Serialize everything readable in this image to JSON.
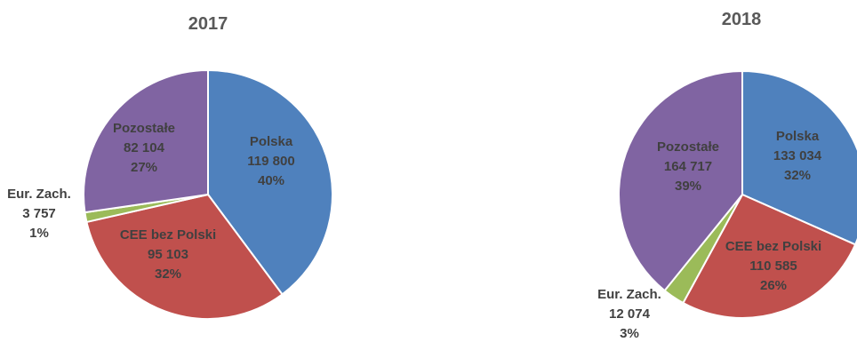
{
  "chart_data": [
    {
      "type": "pie",
      "title": "2017",
      "slices": [
        {
          "label": "Polska",
          "value_text": "119 800",
          "value": 119800,
          "pct_text": "40%",
          "color": "#4F81BD"
        },
        {
          "label": "CEE bez Polski",
          "value_text": "95 103",
          "value": 95103,
          "pct_text": "32%",
          "color": "#C0504D"
        },
        {
          "label": "Eur. Zach.",
          "value_text": "3 757",
          "value": 3757,
          "pct_text": "1%",
          "color": "#9BBB59"
        },
        {
          "label": "Pozostałe",
          "value_text": "82 104",
          "value": 82104,
          "pct_text": "27%",
          "color": "#8064A2"
        }
      ]
    },
    {
      "type": "pie",
      "title": "2018",
      "slices": [
        {
          "label": "Polska",
          "value_text": "133 034",
          "value": 133034,
          "pct_text": "32%",
          "color": "#4F81BD"
        },
        {
          "label": "CEE bez Polski",
          "value_text": "110 585",
          "value": 110585,
          "pct_text": "26%",
          "color": "#C0504D"
        },
        {
          "label": "Eur. Zach.",
          "value_text": "12 074",
          "value": 12074,
          "pct_text": "3%",
          "color": "#9BBB59"
        },
        {
          "label": "Pozostałe",
          "value_text": "164 717",
          "value": 164717,
          "pct_text": "39%",
          "color": "#8064A2"
        }
      ]
    }
  ]
}
